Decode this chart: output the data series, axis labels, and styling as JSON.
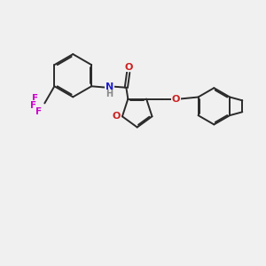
{
  "background_color": "#f0f0f0",
  "bond_color": "#2a2a2a",
  "N_color": "#2020cc",
  "O_color": "#cc2020",
  "F_color": "#cc00cc",
  "H_color": "#888888",
  "line_width": 1.4,
  "figsize": [
    3.0,
    3.0
  ],
  "dpi": 100,
  "xlim": [
    0,
    10
  ],
  "ylim": [
    0,
    10
  ]
}
